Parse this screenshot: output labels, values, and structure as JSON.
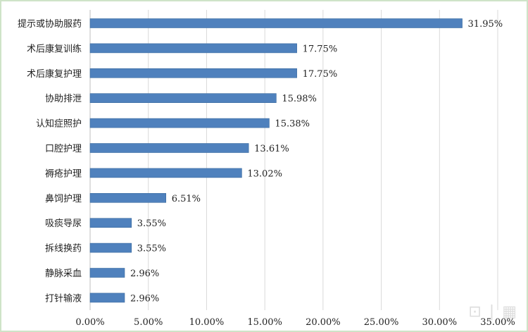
{
  "chart_data": {
    "type": "bar",
    "orientation": "horizontal",
    "categories": [
      "提示或协助服药",
      "术后康复训练",
      "术后康复护理",
      "协助排泄",
      "认知症照护",
      "口腔护理",
      "褥疮护理",
      "鼻饲护理",
      "吸痰导尿",
      "拆线换药",
      "静脉采血",
      "打针输液"
    ],
    "values": [
      31.95,
      17.75,
      17.75,
      15.98,
      15.38,
      13.61,
      13.02,
      6.51,
      3.55,
      3.55,
      2.96,
      2.96
    ],
    "data_labels": [
      "31.95%",
      "17.75%",
      "17.75%",
      "15.98%",
      "15.38%",
      "13.61%",
      "13.02%",
      "6.51%",
      "3.55%",
      "3.55%",
      "2.96%",
      "2.96%"
    ],
    "x_ticks": [
      "0.00%",
      "5.00%",
      "10.00%",
      "15.00%",
      "20.00%",
      "25.00%",
      "30.00%",
      "35.00%"
    ],
    "xlim": [
      0,
      35
    ],
    "grid": "vertical",
    "bar_color": "#4f81bd",
    "grid_color": "#d9d9d9"
  }
}
